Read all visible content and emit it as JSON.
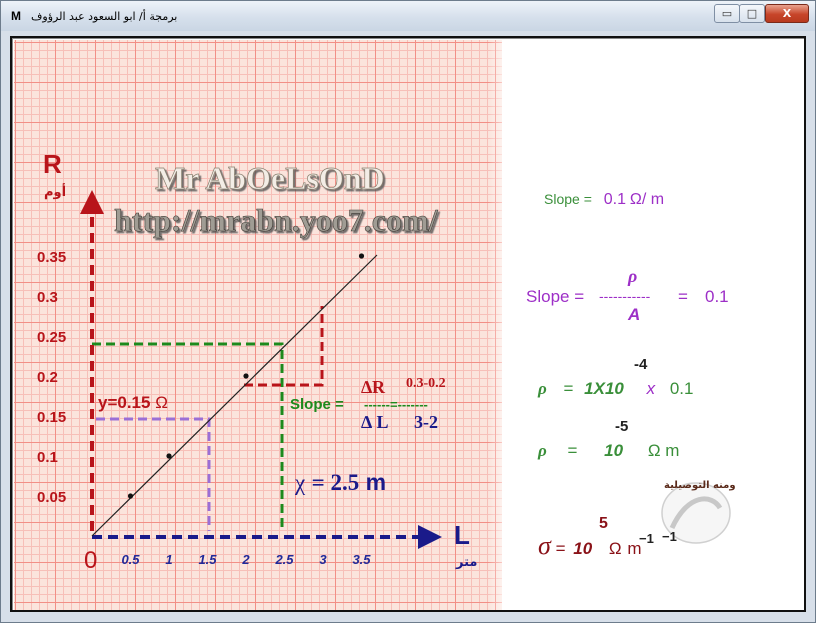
{
  "window": {
    "title": "برمجة أ/ ابو السعود عبد الرؤوف",
    "app_icon": "M",
    "minimize_glyph": "▭",
    "maximize_glyph": "□",
    "close_glyph": "X"
  },
  "watermark": {
    "line1": "Mr AbOeLsOnD",
    "line2": "http://mrabn.yoo7.com/"
  },
  "graph": {
    "y_axis_letter": "R",
    "y_axis_unit": "أوم",
    "x_axis_letter": "L",
    "x_axis_unit": "متر",
    "origin": "0",
    "y_ticks": [
      "0.35",
      "0.3",
      "0.25",
      "0.2",
      "0.15",
      "0.1",
      "0.05"
    ],
    "x_ticks": [
      "0.5",
      "1",
      "1.5",
      "2",
      "2.5",
      "3",
      "3.5"
    ],
    "points": [
      [
        0.5,
        0.05
      ],
      [
        1,
        0.1
      ],
      [
        2,
        0.2
      ],
      [
        3.5,
        0.35
      ]
    ],
    "y_at_label": "y=0.15",
    "y_at_unit": "Ω",
    "slope_word": "Slope =",
    "delta_r": "∆R",
    "delta_l": "∆ L",
    "dashes": "------=-------",
    "num_values": "0.3-0.2",
    "den_values": "3-2",
    "chi_symbol": "χ",
    "chi_value": "= 2.5",
    "chi_unit": "m"
  },
  "results": {
    "slope_text": "Slope =",
    "slope_value": "0.1",
    "slope_unit": "Ω/ m",
    "rho": "ρ",
    "area": "A",
    "frac_line": "-----------",
    "eq": "=",
    "rho_value": "0.1",
    "exp_neg4": "-4",
    "mult_expr": "1X10",
    "times": "x",
    "times_value": "0.1",
    "exp_neg5": "-5",
    "ten": "10",
    "ohm_m": "Ω m",
    "sigma": "σ",
    "exp_5": "5",
    "ohm": "Ω",
    "m": "m",
    "exp_neg1a": "−1",
    "exp_neg1b": "−1"
  },
  "logo": {
    "text": "ومنه التوصيلية"
  },
  "colors": {
    "axis_red": "#b8141a",
    "axis_blue": "#1a1a8a",
    "dash_green": "#1d8a1d",
    "dash_purple": "#9b6fd6",
    "tick_blue": "#202a9a",
    "slope_purple": "#9d2fc7",
    "result_green": "#3a8f3a",
    "dark_red": "#8a1218"
  }
}
